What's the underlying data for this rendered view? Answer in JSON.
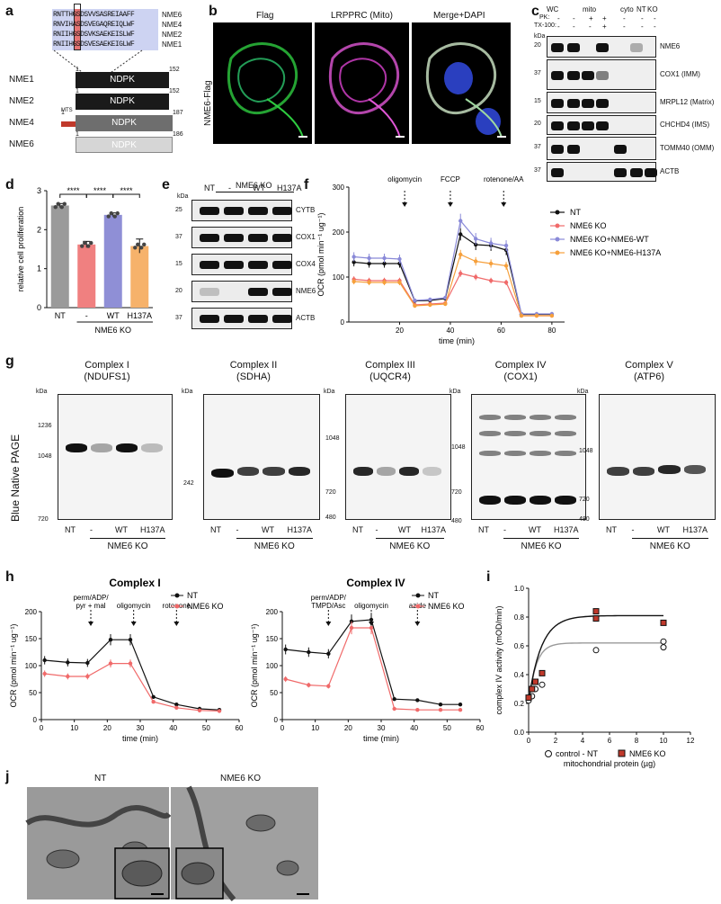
{
  "panels": {
    "a": "a",
    "b": "b",
    "c": "c",
    "d": "d",
    "e": "e",
    "f": "f",
    "g": "g",
    "h": "h",
    "i": "i",
    "j": "j"
  },
  "a": {
    "seq_rows": [
      {
        "seq": "RNTTHGSDSVVSASREIAAFF",
        "name": "NME6"
      },
      {
        "seq": "RNVIHASDSVEGAQREIQLWF",
        "name": "NME4"
      },
      {
        "seq": "RNIIHGSDSVKSAEKEISLWF",
        "name": "NME2"
      },
      {
        "seq": "RNIIHGSDSVESAEKEIGLWF",
        "name": "NME1"
      }
    ],
    "proteins": [
      {
        "name": "NME1",
        "domain": "NDPK",
        "start": "1",
        "end": "152",
        "color": "#1a1a1a"
      },
      {
        "name": "NME2",
        "domain": "NDPK",
        "start": "1",
        "end": "152",
        "color": "#1a1a1a"
      },
      {
        "name": "NME4",
        "domain": "NDPK",
        "start": "1",
        "end": "187",
        "color": "#6e6e6e",
        "mts": "MTS"
      },
      {
        "name": "NME6",
        "domain": "NDPK",
        "start": "1",
        "end": "186",
        "color": "#d6d6d6"
      }
    ]
  },
  "b": {
    "row_label": "NME6-Flag",
    "titles": [
      "Flag",
      "LRPPRC (Mito)",
      "Merge+DAPI"
    ]
  },
  "c": {
    "col_groups": [
      "WC",
      "mito",
      "cyto",
      "NT",
      "KO"
    ],
    "pk_label": "PK:",
    "tx_label": "TX-100:",
    "pk_row": [
      "-",
      "-",
      "+",
      "+",
      "-",
      "-",
      "-"
    ],
    "tx_row": [
      "-",
      "-",
      "-",
      "+",
      "-",
      "-",
      "-"
    ],
    "kda": "kDa",
    "rows": [
      {
        "label": "NME6",
        "mw": "20"
      },
      {
        "label": "COX1 (IMM)",
        "mw": "37"
      },
      {
        "label": "MRPL12 (Matrix)",
        "mw": "15"
      },
      {
        "label": "CHCHD4 (IMS)",
        "mw": "20"
      },
      {
        "label": "TOMM40 (OMM)",
        "mw": "37"
      },
      {
        "label": "ACTB",
        "mw": "37"
      }
    ]
  },
  "d": {
    "chart_data": {
      "type": "bar",
      "categories": [
        "NT",
        "-",
        "WT",
        "H137A"
      ],
      "values": [
        2.62,
        1.62,
        2.38,
        1.58
      ],
      "errors": [
        0.05,
        0.08,
        0.05,
        0.18
      ],
      "colors": [
        "#9a9a9a",
        "#f08080",
        "#8f8fd6",
        "#f6b26b"
      ],
      "ylabel": "relative cell proliferation",
      "ylim": [
        0,
        3
      ],
      "yticks": [
        0,
        1,
        2,
        3
      ],
      "group_label": "NME6 KO",
      "sig": [
        "****",
        "****",
        "****"
      ]
    }
  },
  "e": {
    "kda": "kDa",
    "group_label": "NME6 KO",
    "lanes": [
      "NT",
      "-",
      "WT",
      "H137A"
    ],
    "rows": [
      {
        "label": "CYTB",
        "mw": "25"
      },
      {
        "label": "COX1",
        "mw": "37"
      },
      {
        "label": "COX4",
        "mw": "15"
      },
      {
        "label": "NME6",
        "mw": "20"
      },
      {
        "label": "ACTB",
        "mw": "37"
      }
    ]
  },
  "f": {
    "chart_data": {
      "type": "line",
      "x": [
        2,
        8,
        14,
        20,
        26,
        32,
        38,
        44,
        50,
        56,
        62,
        68,
        74,
        80
      ],
      "series": [
        {
          "name": "NT",
          "color": "#111111",
          "values": [
            133,
            130,
            130,
            130,
            47,
            48,
            52,
            195,
            172,
            170,
            160,
            17,
            17,
            17
          ]
        },
        {
          "name": "NME6 KO",
          "color": "#f06a6a",
          "values": [
            95,
            92,
            92,
            92,
            38,
            40,
            42,
            108,
            100,
            92,
            88,
            14,
            14,
            14
          ]
        },
        {
          "name": "NME6 KO+NME6-WT",
          "color": "#8a8ad8",
          "values": [
            145,
            142,
            142,
            140,
            48,
            50,
            54,
            225,
            185,
            175,
            170,
            18,
            18,
            18
          ]
        },
        {
          "name": "NME6 KO+NME6-H137A",
          "color": "#f6a03c",
          "values": [
            90,
            88,
            88,
            88,
            36,
            38,
            40,
            150,
            135,
            130,
            125,
            14,
            14,
            14
          ]
        }
      ],
      "ylabel": "OCR (pmol min⁻¹ ug⁻¹)",
      "xlabel": "time (min)",
      "ylim": [
        0,
        300
      ],
      "xlim": [
        0,
        85
      ],
      "yticks": [
        0,
        100,
        200,
        300
      ],
      "xticks": [
        20,
        40,
        60,
        80
      ],
      "annotations": [
        {
          "x": 22,
          "text": "oligomycin"
        },
        {
          "x": 40,
          "text": "FCCP"
        },
        {
          "x": 61,
          "text": "rotenone/AA"
        }
      ]
    }
  },
  "g": {
    "side_label": "Blue Native PAGE",
    "kda": "kDa",
    "group_label": "NME6 KO",
    "lanes": [
      "NT",
      "-",
      "WT",
      "H137A"
    ],
    "complexes": [
      {
        "title": "Complex I",
        "sub": "(NDUFS1)",
        "mws": [
          "1236",
          "1048",
          "720"
        ]
      },
      {
        "title": "Complex II",
        "sub": "(SDHA)",
        "mws": [
          "242"
        ]
      },
      {
        "title": "Complex III",
        "sub": "(UQCR4)",
        "mws": [
          "1048",
          "720",
          "480"
        ]
      },
      {
        "title": "Complex IV",
        "sub": "(COX1)",
        "mws": [
          "1048",
          "720",
          "480"
        ]
      },
      {
        "title": "Complex V",
        "sub": "(ATP6)",
        "mws": [
          "1048",
          "720",
          "480"
        ]
      }
    ]
  },
  "h": {
    "charts": [
      {
        "title": "Complex I",
        "type": "line",
        "x": [
          1,
          8,
          14,
          21,
          27,
          34,
          41,
          48,
          54
        ],
        "series": [
          {
            "name": "NT",
            "color": "#111111",
            "values": [
              110,
              106,
              105,
              148,
              148,
              42,
              28,
              20,
              18
            ]
          },
          {
            "name": "NME6 KO",
            "color": "#f06a6a",
            "values": [
              85,
              80,
              80,
              104,
              104,
              33,
              22,
              17,
              16
            ]
          }
        ],
        "ylabel": "OCR (pmol min⁻¹ ug⁻¹)",
        "xlabel": "time (min)",
        "ylim": [
          0,
          200
        ],
        "xlim": [
          0,
          60
        ],
        "yticks": [
          0,
          50,
          100,
          150,
          200
        ],
        "xticks": [
          0,
          10,
          20,
          30,
          40,
          50,
          60
        ],
        "annotations": [
          {
            "x": 15,
            "text": [
              "perm/ADP/",
              "pyr + mal"
            ]
          },
          {
            "x": 28,
            "text": [
              "oligomycin"
            ]
          },
          {
            "x": 41,
            "text": [
              "rotenone"
            ]
          }
        ]
      },
      {
        "title": "Complex IV",
        "type": "line",
        "x": [
          1,
          8,
          14,
          21,
          27,
          34,
          41,
          48,
          54
        ],
        "series": [
          {
            "name": "NT",
            "color": "#111111",
            "values": [
              130,
              125,
              122,
              182,
              185,
              38,
              36,
              28,
              28
            ]
          },
          {
            "name": "NME6 KO",
            "color": "#f06a6a",
            "values": [
              75,
              64,
              62,
              170,
              170,
              20,
              18,
              18,
              18
            ]
          }
        ],
        "ylabel": "OCR (pmol min⁻¹ ug⁻¹)",
        "xlabel": "time (min)",
        "ylim": [
          0,
          200
        ],
        "xlim": [
          0,
          60
        ],
        "yticks": [
          0,
          50,
          100,
          150,
          200
        ],
        "xticks": [
          0,
          10,
          20,
          30,
          40,
          50,
          60
        ],
        "annotations": [
          {
            "x": 14,
            "text": [
              "perm/ADP/",
              "TMPD/Asc"
            ]
          },
          {
            "x": 27,
            "text": [
              "oligomycin"
            ]
          },
          {
            "x": 41,
            "text": [
              "azide"
            ]
          }
        ]
      }
    ]
  },
  "i": {
    "chart_data": {
      "type": "scatter",
      "series": [
        {
          "name": "control - NT",
          "color": "#ffffff",
          "stroke": "#111111",
          "x": [
            0,
            0.25,
            0.5,
            1,
            5,
            10,
            10
          ],
          "y": [
            0.22,
            0.25,
            0.3,
            0.33,
            0.57,
            0.59,
            0.63
          ]
        },
        {
          "name": "NME6 KO",
          "color": "#c0392b",
          "stroke": "#111111",
          "x": [
            0,
            0.25,
            0.5,
            1,
            5,
            5,
            10
          ],
          "y": [
            0.24,
            0.3,
            0.35,
            0.41,
            0.79,
            0.84,
            0.76
          ]
        }
      ],
      "fits": [
        {
          "vmax": 0.62,
          "k": 0.5,
          "y0": 0.2,
          "color": "#9a9a9a"
        },
        {
          "vmax": 0.81,
          "k": 0.85,
          "y0": 0.22,
          "color": "#111111"
        }
      ],
      "ylabel": "complex IV activity (mOD/min)",
      "xlabel": "mitochondrial protein (µg)",
      "ylim": [
        0,
        1.0
      ],
      "xlim": [
        0,
        12
      ],
      "yticks": [
        "0.0",
        "0.2",
        "0.4",
        "0.6",
        "0.8",
        "1.0"
      ],
      "xticks": [
        "0",
        "2",
        "4",
        "6",
        "8",
        "10",
        "12"
      ]
    }
  },
  "j": {
    "labels": [
      "NT",
      "NME6 KO"
    ]
  }
}
